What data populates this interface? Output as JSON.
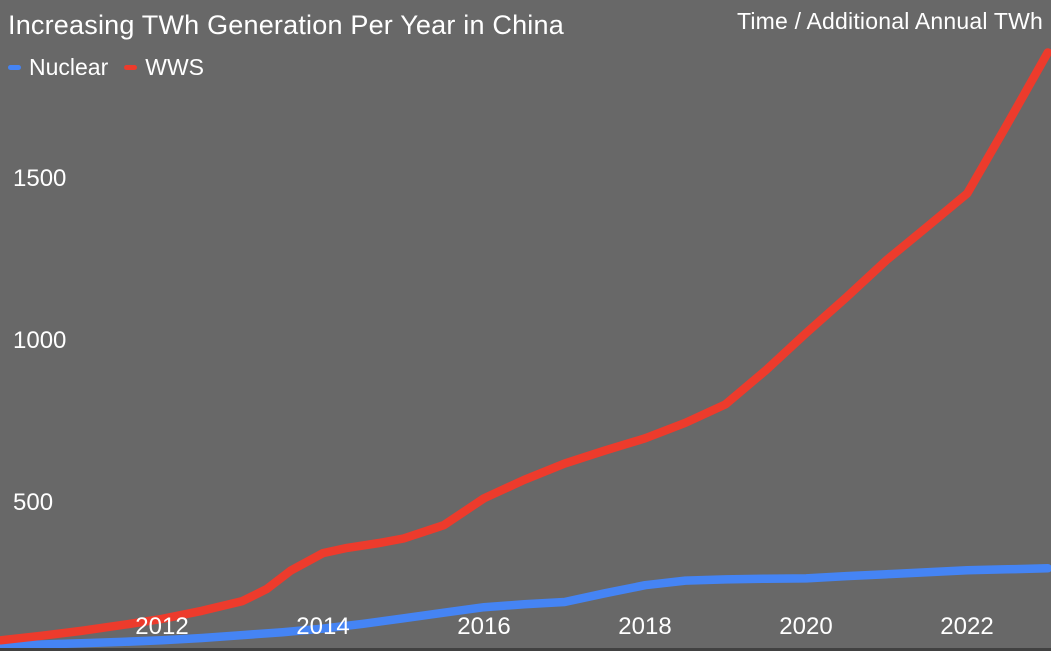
{
  "title": "Increasing TWh Generation Per Year in China",
  "top_right_label": "Time / Additional Annual TWh",
  "legend": [
    {
      "label": "Nuclear",
      "color": "#4584f4"
    },
    {
      "label": "WWS",
      "color": "#ed3b2c"
    }
  ],
  "colors": {
    "background": "#686868",
    "text": "#ffffff",
    "bottom_edge": "#414141"
  },
  "chart_data": {
    "type": "line",
    "title": "Increasing TWh Generation Per Year in China",
    "xlabel": "",
    "ylabel": "Time / Additional Annual TWh",
    "x_ticks": [
      2012,
      2014,
      2016,
      2018,
      2020,
      2022
    ],
    "y_ticks": [
      500,
      1000,
      1500
    ],
    "xlim": [
      2009.99,
      2023.04
    ],
    "ylim": [
      44,
      2052
    ],
    "grid": false,
    "legend_position": "top-left",
    "line_width": 8.5,
    "series": [
      {
        "name": "Nuclear",
        "color": "#4584f4",
        "points": [
          [
            2010,
            60
          ],
          [
            2010.5,
            64
          ],
          [
            2011,
            68
          ],
          [
            2011.5,
            72
          ],
          [
            2012,
            77
          ],
          [
            2012.5,
            84
          ],
          [
            2013,
            93
          ],
          [
            2013.5,
            102
          ],
          [
            2014,
            113
          ],
          [
            2014.5,
            128
          ],
          [
            2015,
            145
          ],
          [
            2015.5,
            162
          ],
          [
            2016,
            179
          ],
          [
            2016.5,
            188
          ],
          [
            2017,
            195
          ],
          [
            2017.5,
            222
          ],
          [
            2018,
            247
          ],
          [
            2018.5,
            261
          ],
          [
            2019,
            265
          ],
          [
            2019.5,
            267
          ],
          [
            2020,
            268
          ],
          [
            2020.5,
            275
          ],
          [
            2021,
            281
          ],
          [
            2021.5,
            287
          ],
          [
            2022,
            293
          ],
          [
            2022.5,
            296
          ],
          [
            2023,
            299
          ]
        ]
      },
      {
        "name": "WWS",
        "color": "#ed3b2c",
        "points": [
          [
            2010,
            77
          ],
          [
            2010.5,
            91
          ],
          [
            2011,
            106
          ],
          [
            2011.5,
            124
          ],
          [
            2012,
            143
          ],
          [
            2012.5,
            168
          ],
          [
            2013,
            198
          ],
          [
            2013.3,
            235
          ],
          [
            2013.6,
            292
          ],
          [
            2014,
            346
          ],
          [
            2014.3,
            362
          ],
          [
            2014.7,
            377
          ],
          [
            2015,
            391
          ],
          [
            2015.5,
            432
          ],
          [
            2016,
            515
          ],
          [
            2016.5,
            572
          ],
          [
            2017,
            622
          ],
          [
            2017.5,
            662
          ],
          [
            2018,
            700
          ],
          [
            2018.5,
            748
          ],
          [
            2019,
            805
          ],
          [
            2019.5,
            910
          ],
          [
            2020,
            1025
          ],
          [
            2020.5,
            1135
          ],
          [
            2021,
            1250
          ],
          [
            2021.5,
            1352
          ],
          [
            2022,
            1455
          ],
          [
            2022.5,
            1670
          ],
          [
            2023,
            1890
          ]
        ]
      }
    ]
  }
}
